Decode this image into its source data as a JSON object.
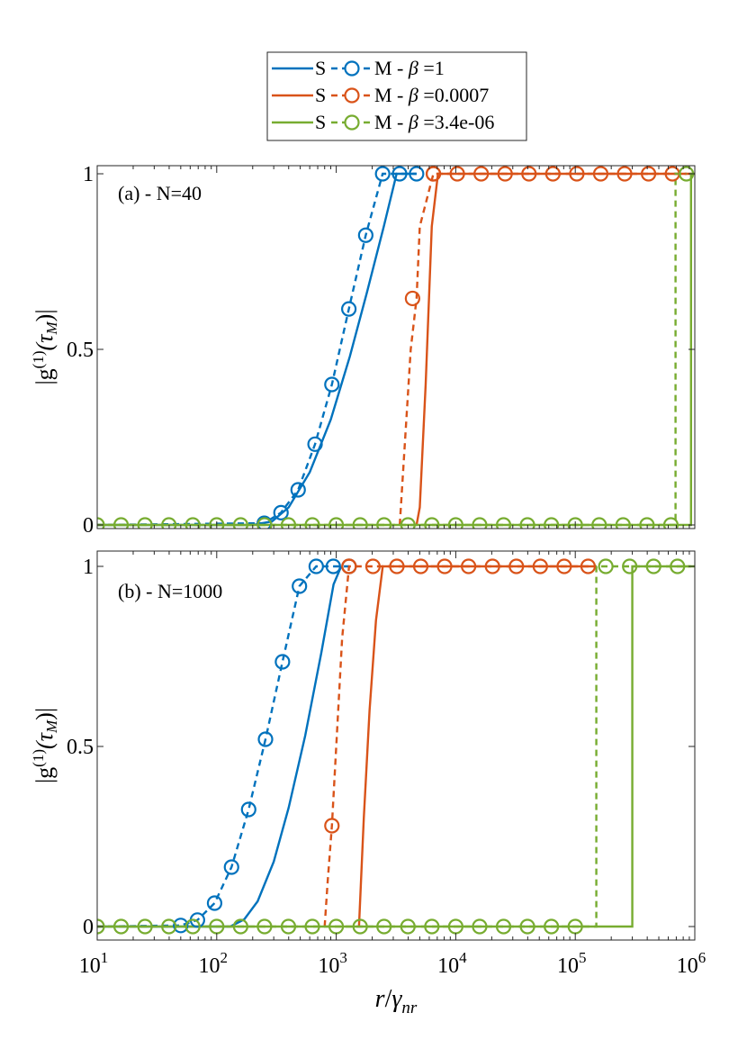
{
  "legend": {
    "entries": [
      {
        "s_label": "S",
        "m_label": "M",
        "sep": "-",
        "beta_value": "=1",
        "color": "#0072BD"
      },
      {
        "s_label": "S",
        "m_label": "M",
        "sep": "-",
        "beta_value": "=0.0007",
        "color": "#D95319"
      },
      {
        "s_label": "S",
        "m_label": "M",
        "sep": "-",
        "beta_value": "=3.4e-06",
        "color": "#77AC30"
      }
    ],
    "beta_symbol": "β",
    "placement": "top-center"
  },
  "chart_data": [
    {
      "type": "line",
      "panel_label": "(a) - N=40",
      "ylabel": "|g(1)(τM)|",
      "xscale": "log",
      "xlim": [
        10,
        1000000
      ],
      "ylim": [
        -0.03,
        1.02
      ],
      "yticks": [
        0,
        0.5,
        1
      ],
      "ytick_labels": [
        "0",
        "0.5",
        "1"
      ],
      "series": [
        {
          "name": "S - β=1",
          "style": "solid",
          "color": "#0072BD",
          "x": [
            10,
            100,
            200,
            290,
            400,
            600,
            900,
            1300,
            1800,
            2500,
            3200,
            4700
          ],
          "y": [
            0,
            0,
            0,
            0.01,
            0.05,
            0.15,
            0.3,
            0.48,
            0.66,
            0.85,
            1,
            1
          ]
        },
        {
          "name": "M - β=1",
          "style": "dashed",
          "color": "#0072BD",
          "x": [
            10,
            250,
            345,
            480,
            665,
            920,
            1275,
            1765,
            2445,
            3390,
            4700
          ],
          "y": [
            0,
            0.005,
            0.035,
            0.1,
            0.23,
            0.4,
            0.615,
            0.825,
            1,
            1,
            1
          ],
          "markers_x": [
            250,
            345,
            480,
            665,
            920,
            1275,
            1765,
            2445,
            3390,
            4700
          ],
          "markers_y": [
            0.005,
            0.035,
            0.1,
            0.23,
            0.4,
            0.615,
            0.825,
            1,
            1,
            1
          ]
        },
        {
          "name": "S - β=0.0007",
          "style": "solid",
          "color": "#D95319",
          "x": [
            4700,
            5000,
            5600,
            6300,
            7100,
            1000000
          ],
          "y": [
            0,
            0.05,
            0.4,
            0.85,
            1,
            1
          ]
        },
        {
          "name": "M - β=0.0007",
          "style": "dashed",
          "color": "#D95319",
          "x": [
            3400,
            3700,
            4200,
            4700,
            5000,
            6500,
            850000
          ],
          "y": [
            0,
            0.2,
            0.5,
            0.645,
            0.85,
            1,
            1
          ],
          "markers_x": [
            4350,
            6500
          ],
          "markers_y": [
            0.645,
            1
          ],
          "marker_range": [
            6500,
            650000
          ]
        },
        {
          "name": "S - β=3.4e-06",
          "style": "solid",
          "color": "#77AC30",
          "x": [
            10,
            930000,
            930000,
            1000000
          ],
          "y": [
            0,
            0,
            1,
            1
          ]
        },
        {
          "name": "M - β=3.4e-06",
          "style": "dashed",
          "color": "#77AC30",
          "x": [
            10,
            690000,
            690000,
            850000
          ],
          "y": [
            0,
            0,
            1,
            1
          ],
          "markers_x": [
            850000
          ],
          "markers_y": [
            1
          ],
          "marker_range": [
            10,
            690000
          ]
        }
      ]
    },
    {
      "type": "line",
      "panel_label": "(b) - N=1000",
      "ylabel": "|g(1)(τM)|",
      "xlabel": "r/γnr",
      "xscale": "log",
      "xlim": [
        10,
        1000000
      ],
      "ylim": [
        -0.03,
        1.02
      ],
      "xticks": [
        10,
        100,
        1000,
        10000,
        100000,
        1000000
      ],
      "xtick_labels": [
        [
          "10",
          "1"
        ],
        [
          "10",
          "2"
        ],
        [
          "10",
          "3"
        ],
        [
          "10",
          "4"
        ],
        [
          "10",
          "5"
        ],
        [
          "10",
          "6"
        ]
      ],
      "yticks": [
        0,
        0.5,
        1
      ],
      "ytick_labels": [
        "0",
        "0.5",
        "1"
      ],
      "series": [
        {
          "name": "S - β=1",
          "style": "solid",
          "color": "#0072BD",
          "x": [
            10,
            130,
            170,
            220,
            300,
            400,
            550,
            750,
            950,
            1100
          ],
          "y": [
            0,
            0,
            0.02,
            0.07,
            0.18,
            0.33,
            0.53,
            0.76,
            0.95,
            1
          ]
        },
        {
          "name": "M - β=1",
          "style": "dashed",
          "color": "#0072BD",
          "x": [
            10,
            50,
            69,
            96,
            133,
            185,
            256,
            355,
            492,
            680,
            945,
            1280
          ],
          "y": [
            0,
            0.003,
            0.018,
            0.065,
            0.165,
            0.325,
            0.52,
            0.735,
            0.945,
            1,
            1,
            1
          ],
          "markers_x": [
            50,
            69,
            96,
            133,
            185,
            256,
            355,
            492,
            680,
            945,
            1280
          ],
          "markers_y": [
            0.003,
            0.018,
            0.065,
            0.165,
            0.325,
            0.52,
            0.735,
            0.945,
            1,
            1,
            1
          ]
        },
        {
          "name": "S - β=0.0007",
          "style": "solid",
          "color": "#D95319",
          "x": [
            1550,
            1700,
            1900,
            2150,
            2450,
            150000
          ],
          "y": [
            0,
            0.3,
            0.6,
            0.85,
            1,
            1
          ]
        },
        {
          "name": "M - β=0.0007",
          "style": "dashed",
          "color": "#D95319",
          "x": [
            800,
            850,
            920,
            1000,
            1120,
            1280,
            130000
          ],
          "y": [
            0,
            0.13,
            0.28,
            0.5,
            0.8,
            1,
            1
          ],
          "markers_x": [
            920,
            1280
          ],
          "markers_y": [
            0.28,
            1
          ],
          "marker_range": [
            1280,
            130000
          ]
        },
        {
          "name": "S - β=3.4e-06",
          "style": "solid",
          "color": "#77AC30",
          "x": [
            10,
            300000,
            300000,
            1000000
          ],
          "y": [
            0,
            0,
            1,
            1
          ]
        },
        {
          "name": "M - β=3.4e-06",
          "style": "dashed",
          "color": "#77AC30",
          "x": [
            10,
            150000,
            150000,
            930000
          ],
          "y": [
            0,
            0,
            1,
            1
          ],
          "markers_x": [],
          "markers_y": [],
          "marker_range": [
            10,
            130000
          ],
          "marker_range_top": [
            180000,
            930000
          ]
        }
      ]
    }
  ]
}
